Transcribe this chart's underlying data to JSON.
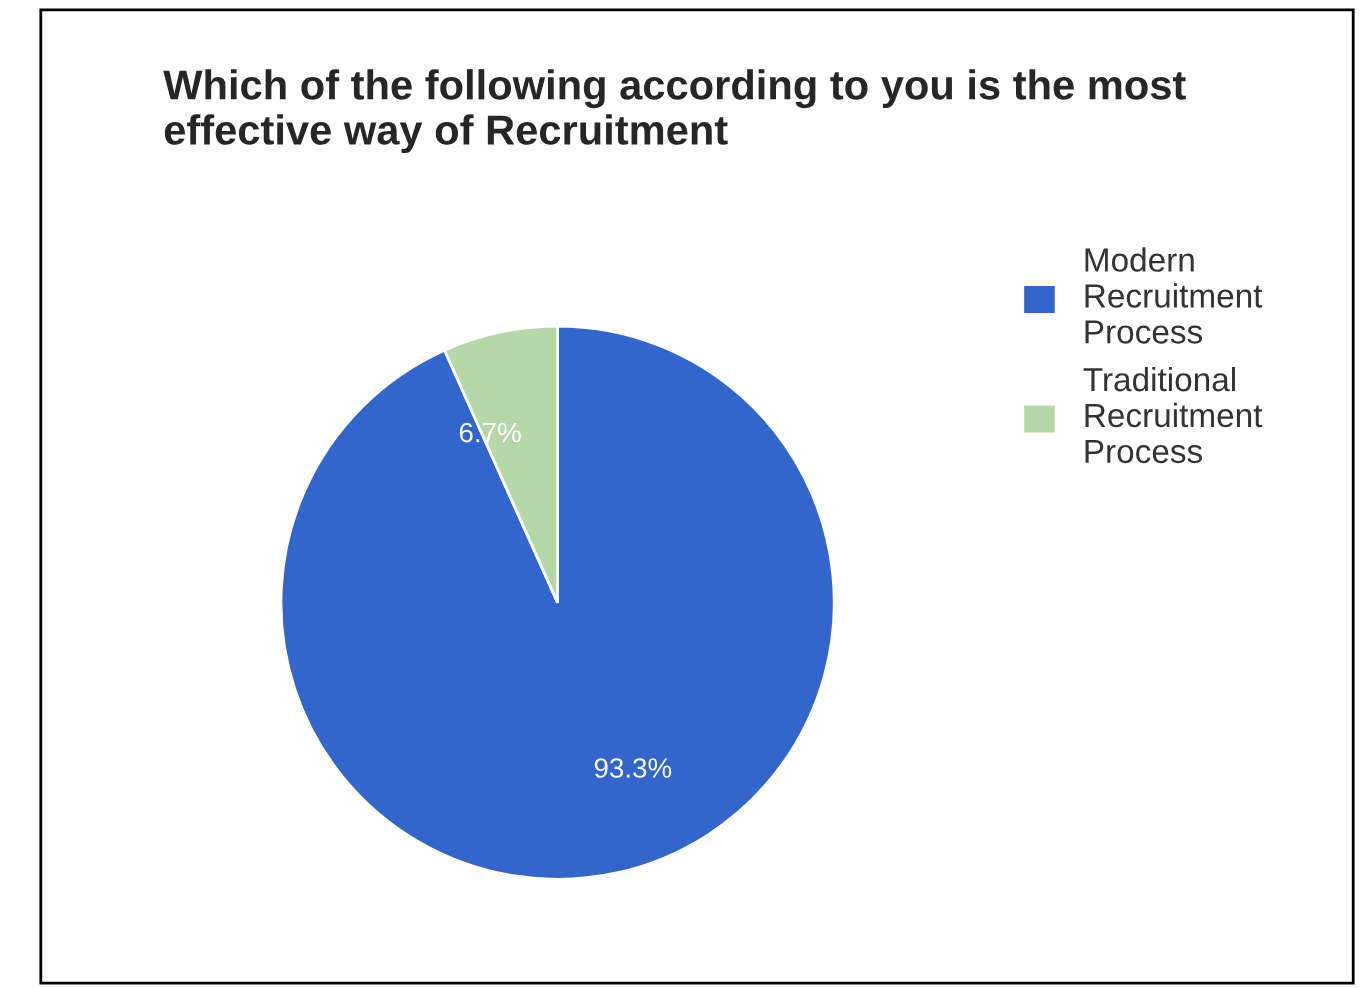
{
  "chart_data": {
    "type": "pie",
    "title": "Which of the following according to you is the most effective way of Recruitment",
    "categories": [
      "Modern Recruitment Process",
      "Traditional Recruitment Process"
    ],
    "values": [
      93.3,
      6.7
    ],
    "value_labels": [
      "93.3%",
      "6.7%"
    ],
    "colors": [
      "#3366cc",
      "#b6d7a8"
    ],
    "legend": "right"
  }
}
